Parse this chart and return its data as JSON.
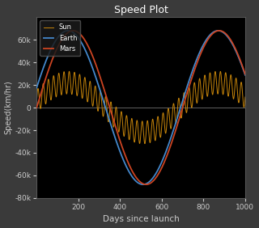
{
  "title": "Speed Plot",
  "xlabel": "Days since launch",
  "ylabel": "Speed(km/hr)",
  "xlim": [
    0,
    1000
  ],
  "ylim": [
    -80000,
    80000
  ],
  "yticks": [
    -80000,
    -60000,
    -40000,
    -20000,
    0,
    20000,
    40000,
    60000
  ],
  "xticks": [
    200,
    400,
    600,
    800,
    1000
  ],
  "background_color": "#000000",
  "figure_background": "#3a3a3a",
  "sun_color": "#c8860a",
  "earth_color": "#4488cc",
  "mars_color": "#cc4422",
  "title_color": "#ffffff",
  "label_color": "#cccccc",
  "tick_color": "#cccccc",
  "earth_amplitude": 68000,
  "earth_period": 720,
  "earth_phase_shift": 240,
  "mars_amplitude": 68000,
  "mars_period": 700,
  "mars_phase_shift": -60,
  "sun_envelope_amplitude": 22000,
  "sun_ripple_amplitude": 10000,
  "sun_ripple_period": 25,
  "sun_phase_shift": 240
}
